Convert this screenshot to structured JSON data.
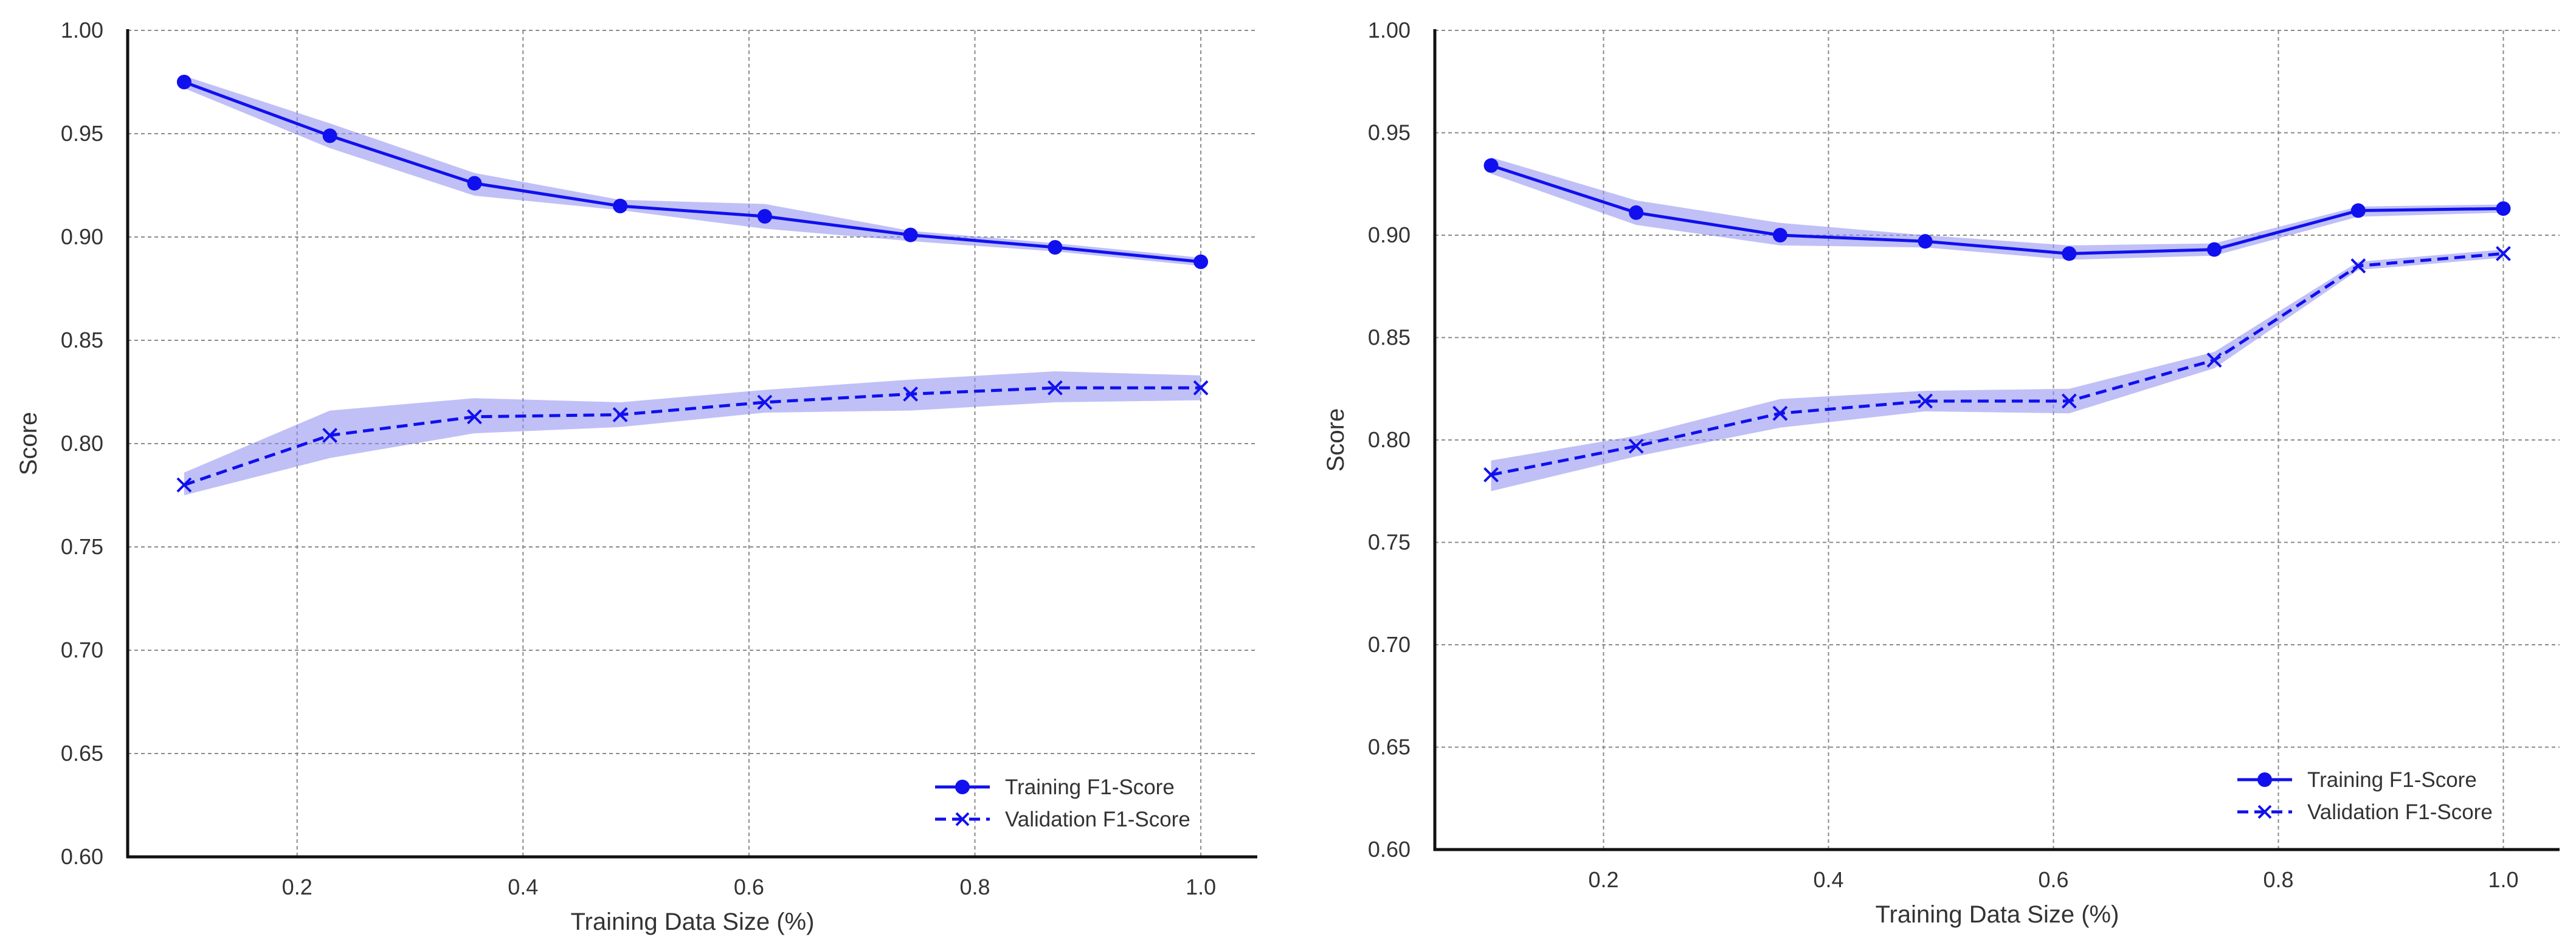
{
  "colors": {
    "line": "#1010ee",
    "band": "#8c8cf0"
  },
  "chart_data": [
    {
      "type": "line",
      "title": "",
      "xlabel": "Training Data Size (%)",
      "ylabel": "Score",
      "xlim": [
        0.05,
        1.05
      ],
      "ylim": [
        0.6,
        1.0
      ],
      "xticks": [
        0.2,
        0.4,
        0.6,
        0.8,
        1.0
      ],
      "xtick_labels": [
        "0.2",
        "0.4",
        "0.6",
        "0.8",
        "1.0"
      ],
      "yticks": [
        0.6,
        0.65,
        0.7,
        0.75,
        0.8,
        0.85,
        0.9,
        0.95,
        1.0
      ],
      "ytick_labels": [
        "0.60",
        "0.65",
        "0.70",
        "0.75",
        "0.80",
        "0.85",
        "0.90",
        "0.95",
        "1.00"
      ],
      "grid": true,
      "legend_position": "lower-right",
      "x": [
        0.1,
        0.229,
        0.357,
        0.486,
        0.614,
        0.743,
        0.871,
        1.0
      ],
      "series": [
        {
          "name": "Training F1-Score",
          "style": "solid",
          "marker": "circle",
          "values": [
            0.975,
            0.949,
            0.926,
            0.915,
            0.91,
            0.901,
            0.895,
            0.888
          ],
          "band_low": [
            0.972,
            0.943,
            0.92,
            0.913,
            0.904,
            0.898,
            0.893,
            0.886
          ],
          "band_high": [
            0.978,
            0.955,
            0.931,
            0.918,
            0.916,
            0.903,
            0.897,
            0.89
          ]
        },
        {
          "name": "Validation F1-Score",
          "style": "dashed",
          "marker": "x",
          "values": [
            0.78,
            0.804,
            0.813,
            0.814,
            0.82,
            0.824,
            0.827,
            0.827
          ],
          "band_low": [
            0.775,
            0.793,
            0.805,
            0.808,
            0.815,
            0.816,
            0.82,
            0.821
          ],
          "band_high": [
            0.786,
            0.816,
            0.822,
            0.82,
            0.826,
            0.831,
            0.835,
            0.833
          ]
        }
      ]
    },
    {
      "type": "line",
      "title": "",
      "xlabel": "Training Data Size (%)",
      "ylabel": "Score",
      "xlim": [
        0.05,
        1.05
      ],
      "ylim": [
        0.6,
        1.0
      ],
      "xticks": [
        0.2,
        0.4,
        0.6,
        0.8,
        1.0
      ],
      "xtick_labels": [
        "0.2",
        "0.4",
        "0.6",
        "0.8",
        "1.0"
      ],
      "yticks": [
        0.6,
        0.65,
        0.7,
        0.75,
        0.8,
        0.85,
        0.9,
        0.95,
        1.0
      ],
      "ytick_labels": [
        "0.60",
        "0.65",
        "0.70",
        "0.75",
        "0.80",
        "0.85",
        "0.90",
        "0.95",
        "1.00"
      ],
      "grid": true,
      "legend_position": "lower-right",
      "x": [
        0.1,
        0.229,
        0.357,
        0.486,
        0.614,
        0.743,
        0.871,
        1.0
      ],
      "series": [
        {
          "name": "Training F1-Score",
          "style": "solid",
          "marker": "circle",
          "values": [
            0.934,
            0.911,
            0.9,
            0.897,
            0.891,
            0.893,
            0.912,
            0.913
          ],
          "band_low": [
            0.93,
            0.905,
            0.895,
            0.894,
            0.888,
            0.89,
            0.909,
            0.911
          ],
          "band_high": [
            0.938,
            0.917,
            0.906,
            0.9,
            0.895,
            0.896,
            0.914,
            0.915
          ]
        },
        {
          "name": "Validation F1-Score",
          "style": "dashed",
          "marker": "x",
          "values": [
            0.783,
            0.797,
            0.813,
            0.819,
            0.819,
            0.839,
            0.885,
            0.891
          ],
          "band_low": [
            0.775,
            0.792,
            0.806,
            0.814,
            0.813,
            0.835,
            0.883,
            0.889
          ],
          "band_high": [
            0.79,
            0.802,
            0.82,
            0.824,
            0.825,
            0.843,
            0.887,
            0.893
          ]
        }
      ]
    }
  ]
}
